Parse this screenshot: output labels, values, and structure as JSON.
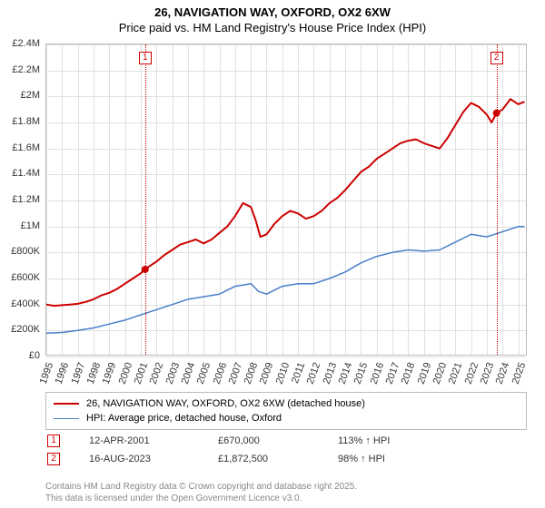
{
  "title": {
    "line1": "26, NAVIGATION WAY, OXFORD, OX2 6XW",
    "line2": "Price paid vs. HM Land Registry's House Price Index (HPI)",
    "fontsize": 13,
    "color": "#000000"
  },
  "chart": {
    "type": "line",
    "background_color": "#ffffff",
    "grid_color": "#e0e0e0",
    "border_color": "#bbbbbb",
    "x": {
      "min": 1995,
      "max": 2025.6,
      "ticks": [
        1995,
        1996,
        1997,
        1998,
        1999,
        2000,
        2001,
        2002,
        2003,
        2004,
        2005,
        2006,
        2007,
        2008,
        2009,
        2010,
        2011,
        2012,
        2013,
        2014,
        2015,
        2016,
        2017,
        2018,
        2019,
        2020,
        2021,
        2022,
        2023,
        2024,
        2025
      ],
      "label_fontsize": 11,
      "label_rotation": -70
    },
    "y": {
      "min": 0,
      "max": 2400000,
      "ticks": [
        0,
        200000,
        400000,
        600000,
        800000,
        1000000,
        1200000,
        1400000,
        1600000,
        1800000,
        2000000,
        2200000,
        2400000
      ],
      "tick_labels": [
        "£0",
        "£200K",
        "£400K",
        "£600K",
        "£800K",
        "£1M",
        "£1.2M",
        "£1.4M",
        "£1.6M",
        "£1.8M",
        "£2M",
        "£2.2M",
        "£2.4M"
      ],
      "label_fontsize": 11
    },
    "series": [
      {
        "name": "26, NAVIGATION WAY, OXFORD, OX2 6XW (detached house)",
        "color": "#cc0000",
        "line_width": 2,
        "data": [
          [
            1995.0,
            400000
          ],
          [
            1995.5,
            390000
          ],
          [
            1996.0,
            395000
          ],
          [
            1996.5,
            400000
          ],
          [
            1997.0,
            405000
          ],
          [
            1997.5,
            420000
          ],
          [
            1998.0,
            440000
          ],
          [
            1998.5,
            470000
          ],
          [
            1999.0,
            490000
          ],
          [
            1999.5,
            520000
          ],
          [
            2000.0,
            560000
          ],
          [
            2000.5,
            600000
          ],
          [
            2001.0,
            640000
          ],
          [
            2001.28,
            670000
          ],
          [
            2001.5,
            690000
          ],
          [
            2002.0,
            730000
          ],
          [
            2002.5,
            780000
          ],
          [
            2003.0,
            820000
          ],
          [
            2003.5,
            860000
          ],
          [
            2004.0,
            880000
          ],
          [
            2004.5,
            900000
          ],
          [
            2005.0,
            870000
          ],
          [
            2005.5,
            900000
          ],
          [
            2006.0,
            950000
          ],
          [
            2006.5,
            1000000
          ],
          [
            2007.0,
            1080000
          ],
          [
            2007.5,
            1180000
          ],
          [
            2008.0,
            1150000
          ],
          [
            2008.3,
            1050000
          ],
          [
            2008.6,
            920000
          ],
          [
            2009.0,
            940000
          ],
          [
            2009.5,
            1020000
          ],
          [
            2010.0,
            1080000
          ],
          [
            2010.5,
            1120000
          ],
          [
            2011.0,
            1100000
          ],
          [
            2011.5,
            1060000
          ],
          [
            2012.0,
            1080000
          ],
          [
            2012.5,
            1120000
          ],
          [
            2013.0,
            1180000
          ],
          [
            2013.5,
            1220000
          ],
          [
            2014.0,
            1280000
          ],
          [
            2014.5,
            1350000
          ],
          [
            2015.0,
            1420000
          ],
          [
            2015.5,
            1460000
          ],
          [
            2016.0,
            1520000
          ],
          [
            2016.5,
            1560000
          ],
          [
            2017.0,
            1600000
          ],
          [
            2017.5,
            1640000
          ],
          [
            2018.0,
            1660000
          ],
          [
            2018.5,
            1670000
          ],
          [
            2019.0,
            1640000
          ],
          [
            2019.5,
            1620000
          ],
          [
            2020.0,
            1600000
          ],
          [
            2020.5,
            1680000
          ],
          [
            2021.0,
            1780000
          ],
          [
            2021.5,
            1880000
          ],
          [
            2022.0,
            1950000
          ],
          [
            2022.5,
            1920000
          ],
          [
            2023.0,
            1860000
          ],
          [
            2023.3,
            1800000
          ],
          [
            2023.62,
            1872500
          ],
          [
            2024.0,
            1900000
          ],
          [
            2024.5,
            1980000
          ],
          [
            2025.0,
            1940000
          ],
          [
            2025.4,
            1960000
          ]
        ]
      },
      {
        "name": "HPI: Average price, detached house, Oxford",
        "color": "#4a7ec8",
        "line_width": 1.5,
        "data": [
          [
            1995.0,
            180000
          ],
          [
            1996.0,
            185000
          ],
          [
            1997.0,
            200000
          ],
          [
            1998.0,
            220000
          ],
          [
            1999.0,
            250000
          ],
          [
            2000.0,
            280000
          ],
          [
            2001.0,
            320000
          ],
          [
            2002.0,
            360000
          ],
          [
            2003.0,
            400000
          ],
          [
            2004.0,
            440000
          ],
          [
            2005.0,
            460000
          ],
          [
            2006.0,
            480000
          ],
          [
            2007.0,
            540000
          ],
          [
            2008.0,
            560000
          ],
          [
            2008.5,
            500000
          ],
          [
            2009.0,
            480000
          ],
          [
            2010.0,
            540000
          ],
          [
            2011.0,
            560000
          ],
          [
            2012.0,
            560000
          ],
          [
            2013.0,
            600000
          ],
          [
            2014.0,
            650000
          ],
          [
            2015.0,
            720000
          ],
          [
            2016.0,
            770000
          ],
          [
            2017.0,
            800000
          ],
          [
            2018.0,
            820000
          ],
          [
            2019.0,
            810000
          ],
          [
            2020.0,
            820000
          ],
          [
            2021.0,
            880000
          ],
          [
            2022.0,
            940000
          ],
          [
            2023.0,
            920000
          ],
          [
            2024.0,
            960000
          ],
          [
            2025.0,
            1000000
          ],
          [
            2025.4,
            1000000
          ]
        ]
      }
    ],
    "sale_markers": [
      {
        "n": "1",
        "x": 2001.28,
        "y": 670000,
        "color": "#cc0000"
      },
      {
        "n": "2",
        "x": 2023.62,
        "y": 1872500,
        "color": "#cc0000"
      }
    ]
  },
  "legend": {
    "border_color": "#bbbbbb",
    "fontsize": 11
  },
  "sales": [
    {
      "n": "1",
      "date": "12-APR-2001",
      "price": "£670,000",
      "hpi_pct": "113% ↑ HPI",
      "color": "#cc0000"
    },
    {
      "n": "2",
      "date": "16-AUG-2023",
      "price": "£1,872,500",
      "hpi_pct": "98% ↑ HPI",
      "color": "#cc0000"
    }
  ],
  "attribution": {
    "line1": "Contains HM Land Registry data © Crown copyright and database right 2025.",
    "line2": "This data is licensed under the Open Government Licence v3.0.",
    "color": "#888888",
    "fontsize": 10
  }
}
